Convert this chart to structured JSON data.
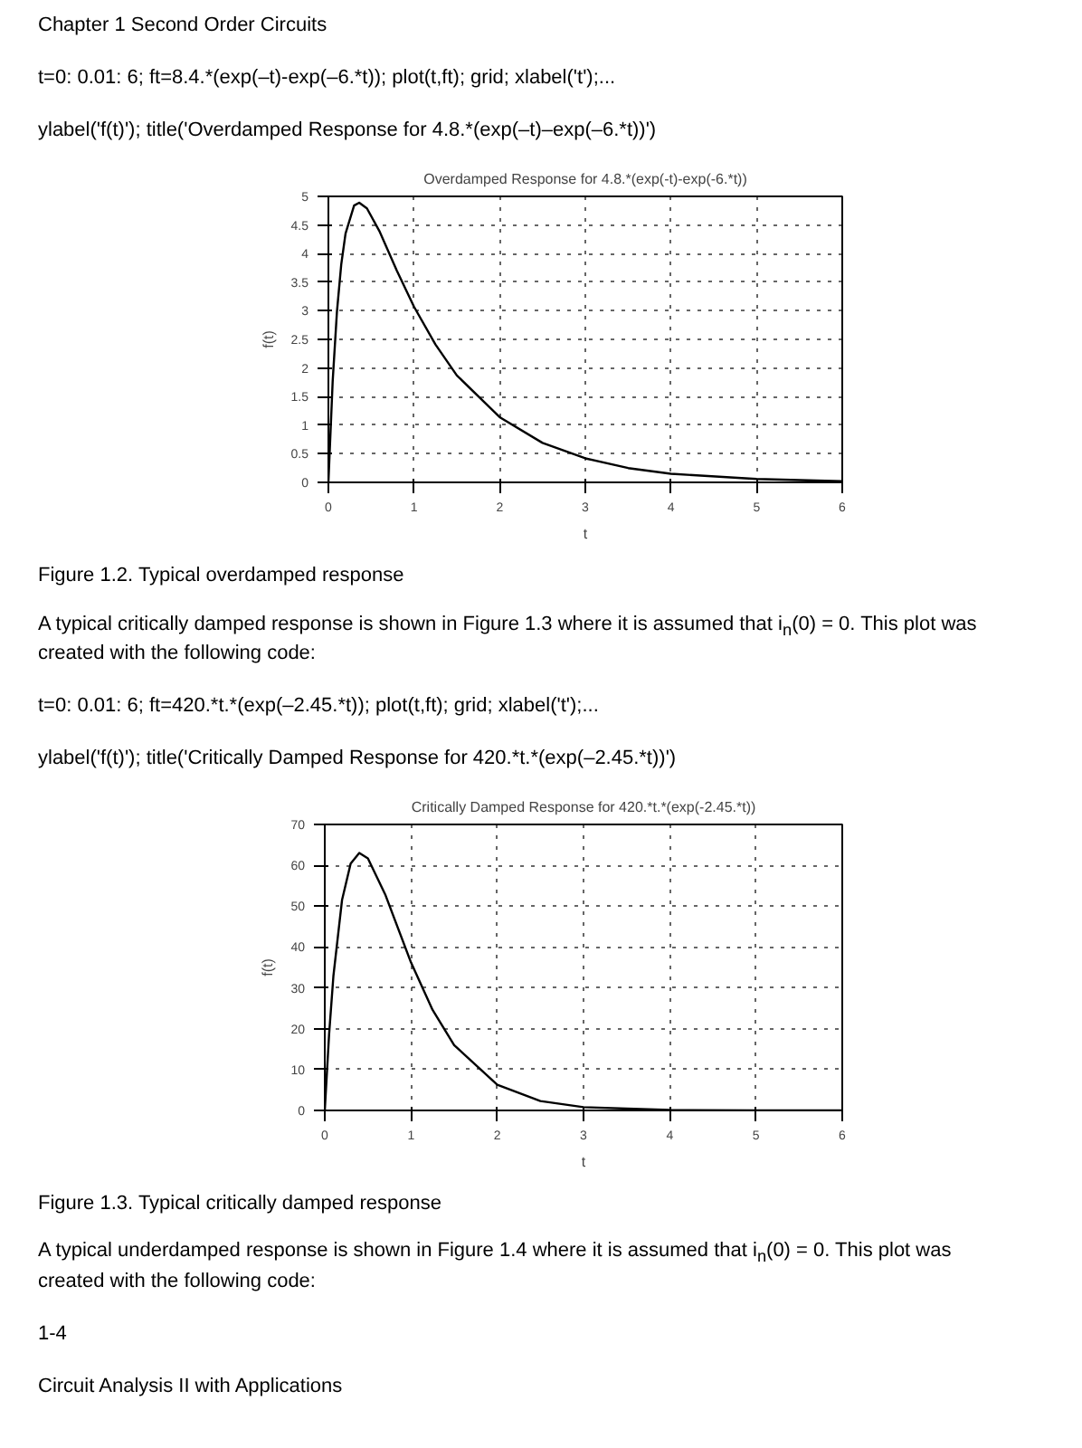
{
  "chart_data": [
    {
      "type": "line",
      "title": "Overdamped Response for 4.8.*(exp(-t)-exp(-6.*t))",
      "xlabel": "t",
      "ylabel": "f(t)",
      "annotations": [
        "Chapter 1  Second Order Circuits",
        "t=0: 0.01: 6; ft=8.4.*(exp(–t)-exp(–6.*t)); plot(t,ft); grid; xlabel('t');...",
        "ylabel('f(t)'); title('Overdamped Response for 4.8.*(exp(–t)–exp(–6.*t))')"
      ],
      "x": [
        0,
        0.05,
        0.1,
        0.15,
        0.2,
        0.3,
        0.36,
        0.45,
        0.6,
        0.8,
        1,
        1.25,
        1.5,
        2,
        2.5,
        3,
        3.5,
        4,
        5,
        6
      ],
      "series": [
        {
          "color": "#000000",
          "values": [
            0,
            1.77,
            2.99,
            3.81,
            4.35,
            4.84,
            4.89,
            4.79,
            4.38,
            3.7,
            3.07,
            2.41,
            1.87,
            1.14,
            0.69,
            0.42,
            0.25,
            0.15,
            0.06,
            0.02
          ]
        }
      ],
      "xlim": [
        0,
        6
      ],
      "xticks": [
        0,
        1,
        2,
        3,
        4,
        5,
        6
      ],
      "ylim": [
        0,
        5
      ],
      "yticks": [
        0,
        0.5,
        1,
        1.5,
        2,
        2.5,
        3,
        3.5,
        4,
        4.5,
        5
      ],
      "grid": true
    },
    {
      "type": "line",
      "title": "Critically Damped Response for 420.*t.*(exp(-2.45.*t))",
      "xlabel": "t",
      "ylabel": "f(t)",
      "annotations": [
        "Figure 1.2.  Typical overdamped response",
        "A typical critically damped response is shown in Figure 1.3 where it is assumed that i$_{n}$(0) = 0. This plot was created with the following code:",
        "t=0: 0.01: 6; ft=420.*t.*(exp(–2.45.*t)); plot(t,ft); grid; xlabel('t');...",
        "ylabel('f(t)'); title('Critically Damped Response for 420.*t.*(exp(–2.45.*t))')"
      ],
      "x": [
        0,
        0.05,
        0.1,
        0.2,
        0.3,
        0.4,
        0.5,
        0.7,
        1,
        1.25,
        1.5,
        2,
        2.5,
        3,
        4,
        5,
        6
      ],
      "series": [
        {
          "color": "#000000",
          "values": [
            0,
            18.6,
            32.9,
            51.5,
            60.4,
            63.0,
            61.7,
            52.9,
            36.2,
            24.6,
            16.0,
            6.3,
            2.3,
            0.8,
            0.1,
            0,
            0
          ]
        }
      ],
      "xlim": [
        0,
        6
      ],
      "xticks": [
        0,
        1,
        2,
        3,
        4,
        5,
        6
      ],
      "ylim": [
        0,
        70
      ],
      "yticks": [
        0,
        10,
        20,
        30,
        40,
        50,
        60,
        70
      ],
      "grid": true
    },
    {
      "type": "other",
      "annotations": [
        "Figure 1.3.  Typical critically damped response",
        "A typical underdamped response is shown in Figure 1.4 where it is assumed that i$_{n}$(0) = 0. This plot was created with the following code:",
        "1-4",
        "Circuit Analysis II with Applications"
      ]
    }
  ]
}
